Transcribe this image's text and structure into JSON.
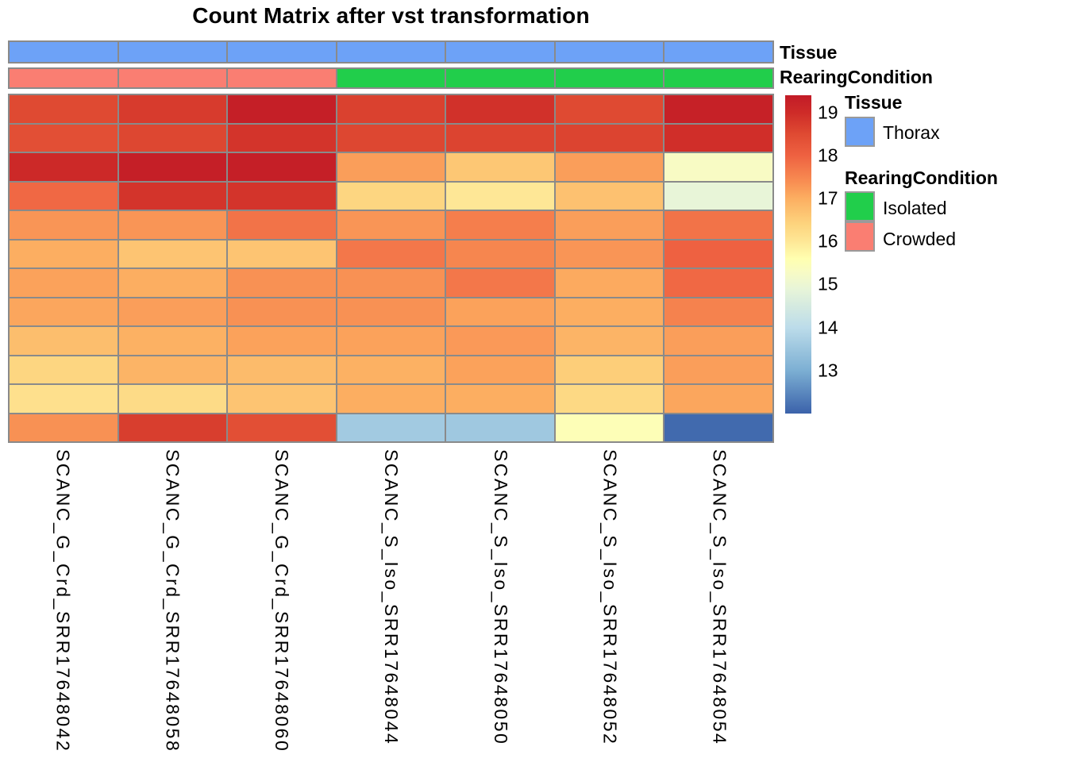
{
  "title": "Count Matrix after vst transformation",
  "annotation_bars": {
    "tissue_label": "Tissue",
    "rearing_label": "RearingCondition",
    "tissue_per_column": [
      "Thorax",
      "Thorax",
      "Thorax",
      "Thorax",
      "Thorax",
      "Thorax",
      "Thorax"
    ],
    "rearing_per_column": [
      "Crowded",
      "Crowded",
      "Crowded",
      "Isolated",
      "Isolated",
      "Isolated",
      "Isolated"
    ]
  },
  "annotation_colors": {
    "Thorax": "#6DA2F7",
    "Isolated": "#21CE4B",
    "Crowded": "#FA7E72"
  },
  "legend": {
    "tissue_header": "Tissue",
    "tissue_items": [
      {
        "label": "Thorax",
        "color": "#6DA2F7"
      }
    ],
    "rearing_header": "RearingCondition",
    "rearing_items": [
      {
        "label": "Isolated",
        "color": "#21CE4B"
      },
      {
        "label": "Crowded",
        "color": "#FA7E72"
      }
    ]
  },
  "chart_data": {
    "type": "heatmap",
    "title": "Count Matrix after vst transformation",
    "columns": [
      "SCANC_G_Crd_SRR17648042",
      "SCANC_G_Crd_SRR17648058",
      "SCANC_G_Crd_SRR17648060",
      "SCANC_S_Iso_SRR17648044",
      "SCANC_S_Iso_SRR17648050",
      "SCANC_S_Iso_SRR17648052",
      "SCANC_S_Iso_SRR17648054"
    ],
    "column_annotations": {
      "Tissue": [
        "Thorax",
        "Thorax",
        "Thorax",
        "Thorax",
        "Thorax",
        "Thorax",
        "Thorax"
      ],
      "RearingCondition": [
        "Crowded",
        "Crowded",
        "Crowded",
        "Isolated",
        "Isolated",
        "Isolated",
        "Isolated"
      ]
    },
    "n_rows": 12,
    "row_labels_shown": false,
    "values": [
      [
        18.5,
        18.75,
        19.3,
        18.65,
        18.9,
        18.5,
        19.25
      ],
      [
        18.4,
        18.55,
        18.85,
        18.55,
        18.6,
        18.6,
        18.95
      ],
      [
        19.05,
        19.3,
        19.3,
        17.2,
        16.6,
        17.2,
        15.3
      ],
      [
        17.9,
        18.85,
        18.85,
        16.35,
        16.0,
        16.7,
        14.9
      ],
      [
        17.3,
        17.3,
        17.75,
        17.3,
        17.6,
        17.2,
        17.75
      ],
      [
        17.0,
        16.65,
        16.65,
        17.7,
        17.5,
        17.3,
        18.0
      ],
      [
        17.15,
        17.0,
        17.35,
        17.35,
        17.7,
        17.05,
        17.9
      ],
      [
        17.1,
        17.2,
        17.35,
        17.35,
        17.15,
        17.0,
        17.55
      ],
      [
        16.75,
        16.95,
        17.15,
        17.15,
        17.25,
        16.9,
        17.2
      ],
      [
        16.35,
        16.9,
        16.8,
        16.95,
        17.15,
        16.5,
        17.2
      ],
      [
        16.15,
        16.25,
        16.65,
        17.0,
        17.0,
        16.3,
        17.1
      ],
      [
        17.35,
        18.7,
        18.4,
        13.6,
        13.55,
        15.5,
        12.1
      ]
    ],
    "color_scale": {
      "min": 12.0,
      "max": 19.4,
      "ticks": [
        19,
        18,
        17,
        16,
        15,
        14,
        13
      ],
      "legend_position": "right",
      "colormap_stops": [
        {
          "v": 12.0,
          "c": "#3B62AA"
        },
        {
          "v": 13.0,
          "c": "#7CAFD3"
        },
        {
          "v": 14.0,
          "c": "#BCDCEA"
        },
        {
          "v": 14.9,
          "c": "#E8F5D8"
        },
        {
          "v": 15.3,
          "c": "#F8FBC4"
        },
        {
          "v": 15.6,
          "c": "#FFFFB0"
        },
        {
          "v": 16.0,
          "c": "#FEE796"
        },
        {
          "v": 16.4,
          "c": "#FDD47E"
        },
        {
          "v": 17.0,
          "c": "#FCAE61"
        },
        {
          "v": 17.4,
          "c": "#F88D52"
        },
        {
          "v": 18.0,
          "c": "#EE6141"
        },
        {
          "v": 18.5,
          "c": "#DF4A32"
        },
        {
          "v": 19.0,
          "c": "#CE2B28"
        },
        {
          "v": 19.4,
          "c": "#C21B27"
        }
      ]
    },
    "grid_line_color": "#8A8A8A"
  }
}
